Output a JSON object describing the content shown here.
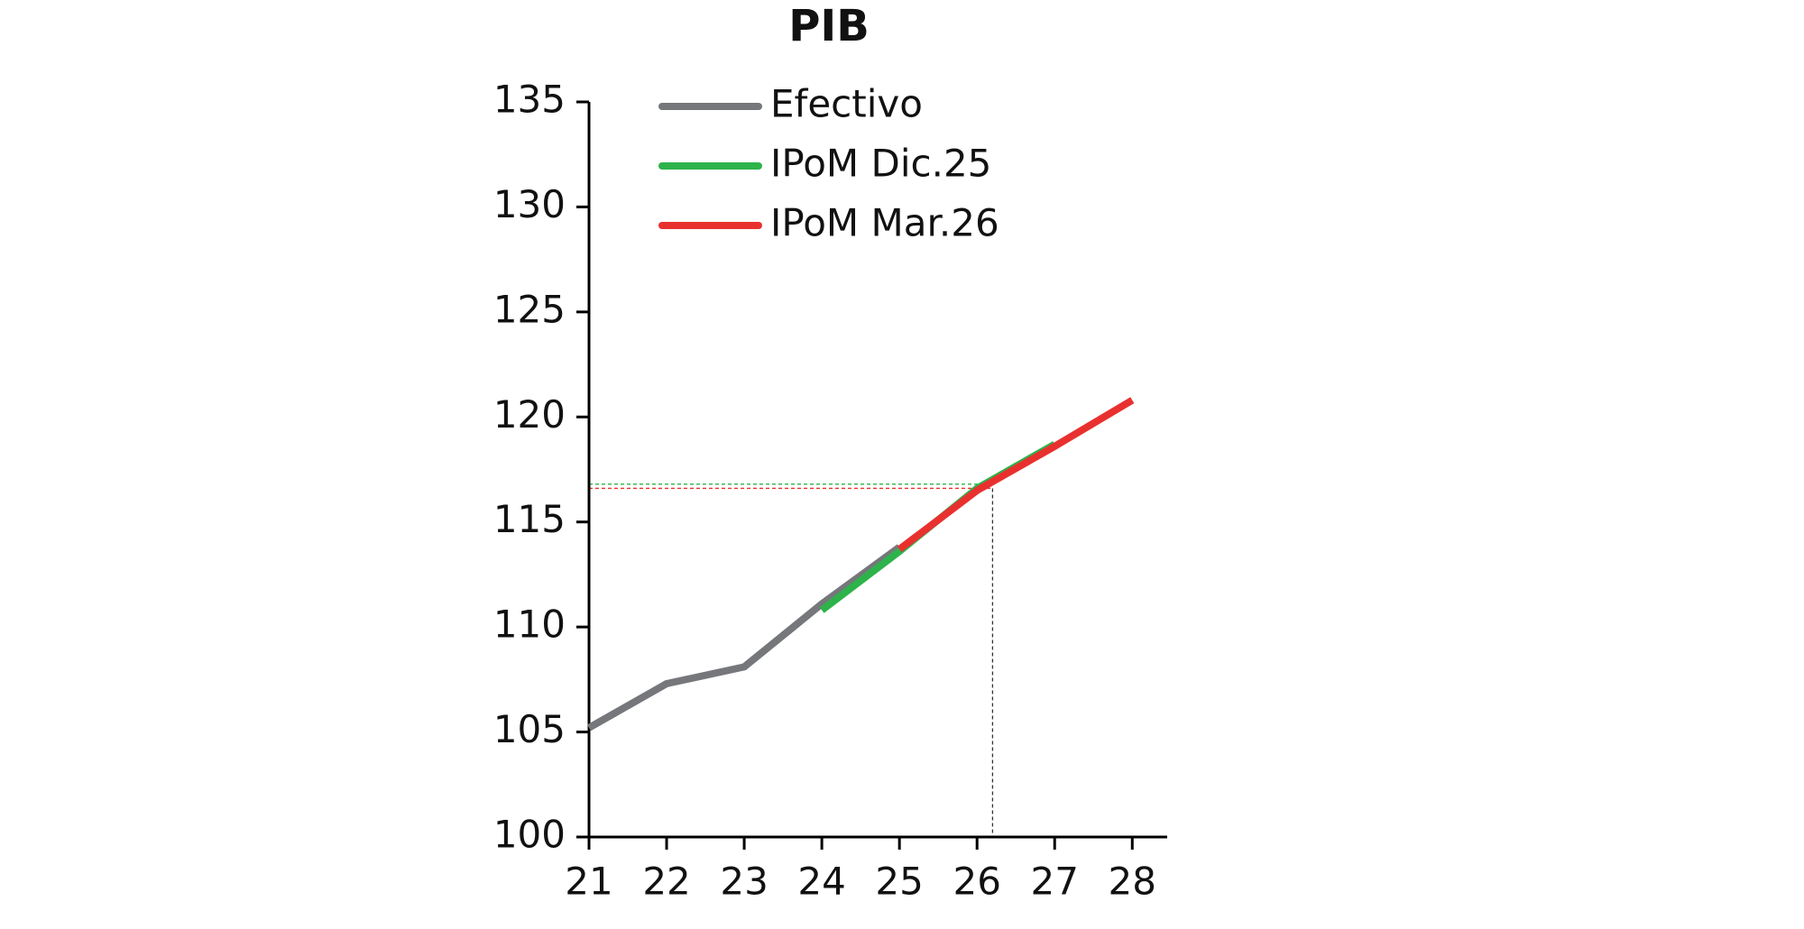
{
  "chart_data": {
    "type": "line",
    "title": "PIB",
    "x": [
      21,
      22,
      23,
      24,
      25,
      26,
      27,
      28
    ],
    "series": [
      {
        "name": "Efectivo",
        "color": "#75777b",
        "values": [
          105.2,
          107.3,
          108.1,
          111.1,
          113.8,
          null,
          null,
          null
        ]
      },
      {
        "name": "IPoM Dic.25",
        "color": "#2db34a",
        "values": [
          null,
          null,
          null,
          110.8,
          113.6,
          116.6,
          118.7,
          null
        ]
      },
      {
        "name": "IPoM Mar.26",
        "color": "#e8312f",
        "values": [
          null,
          null,
          null,
          null,
          113.7,
          116.5,
          118.6,
          120.8
        ]
      }
    ],
    "xlim": [
      21,
      28.45
    ],
    "xticks": [
      21,
      22,
      23,
      24,
      25,
      26,
      27,
      28
    ],
    "ylim": [
      100,
      135
    ],
    "yticks": [
      100,
      105,
      110,
      115,
      120,
      125,
      130,
      135
    ],
    "grid": false,
    "legend": "top-left",
    "reference_x": 26.2,
    "reference_y": [
      {
        "value": 116.8,
        "color": "#2db34a"
      },
      {
        "value": 116.6,
        "color": "#e8312f"
      }
    ]
  }
}
